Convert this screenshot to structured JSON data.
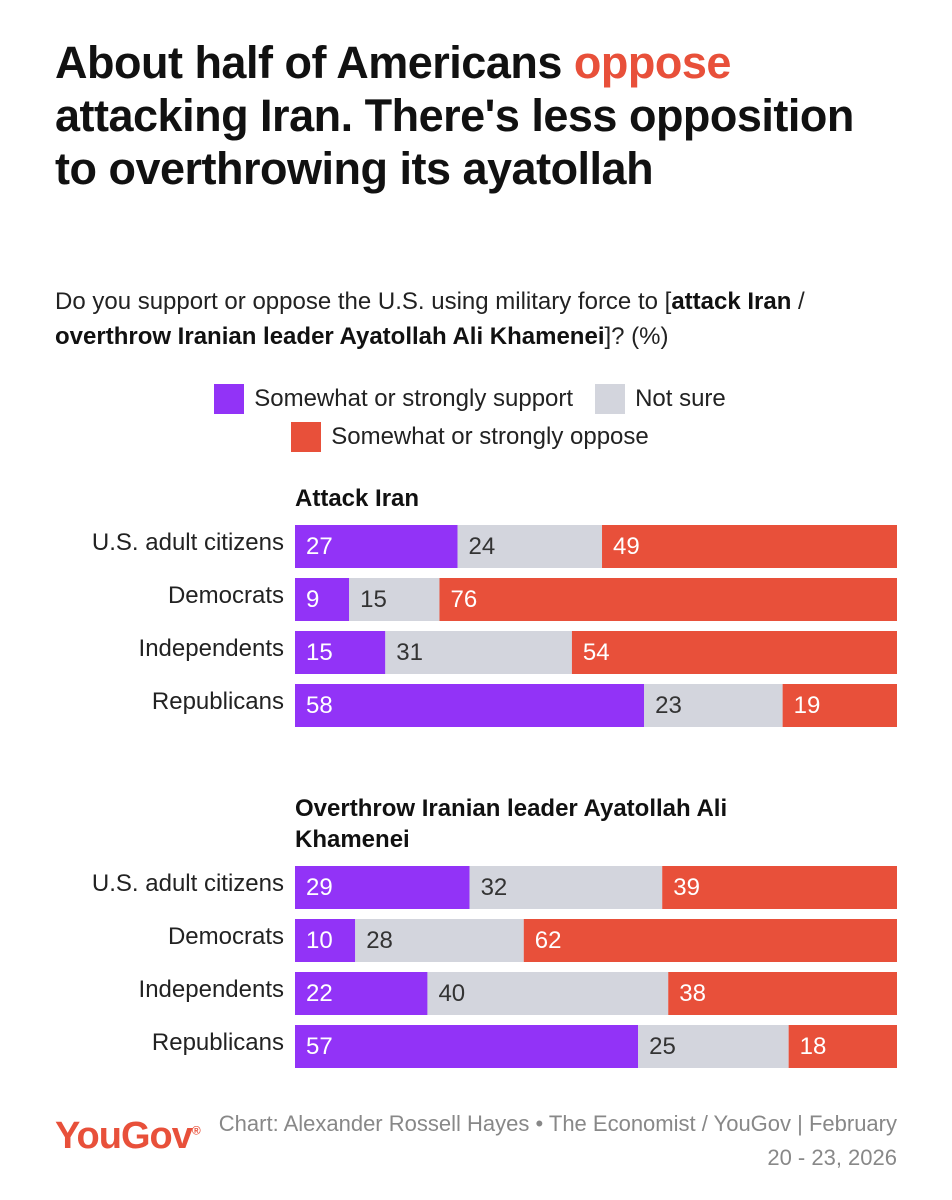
{
  "chart_data": {
    "type": "bar",
    "stacked": true,
    "orientation": "horizontal",
    "title": [
      {
        "text": "About half of Americans "
      },
      {
        "text": "oppose",
        "color": "#e8503a"
      },
      {
        "text": " attacking Iran. There's less opposition to overthrowing its ayatollah"
      }
    ],
    "subtitle": [
      {
        "text": "Do you support or oppose the U.S. using military force to ["
      },
      {
        "text": "attack Iran",
        "bold": true
      },
      {
        "text": " / "
      },
      {
        "text": "overthrow Iranian leader Ayatollah Ali Khamenei",
        "bold": true
      },
      {
        "text": "]? (%)"
      }
    ],
    "xlim": [
      0,
      100
    ],
    "panels": [
      {
        "title": "Attack Iran",
        "categories": [
          "U.S. adult citizens",
          "Democrats",
          "Independents",
          "Republicans"
        ]
      },
      {
        "title": "Overthrow Iranian leader Ayatollah Ali Khamenei",
        "categories": [
          "U.S. adult citizens",
          "Democrats",
          "Independents",
          "Republicans"
        ]
      }
    ],
    "series": [
      {
        "name": "Somewhat or strongly support",
        "color": "#9233f7",
        "label_color": "#ffffff",
        "values": [
          [
            27,
            9,
            15,
            58
          ],
          [
            29,
            10,
            22,
            57
          ]
        ]
      },
      {
        "name": "Not sure",
        "color": "#d3d5dd",
        "label_color": "#333333",
        "values": [
          [
            24,
            15,
            31,
            23
          ],
          [
            32,
            28,
            40,
            25
          ]
        ]
      },
      {
        "name": "Somewhat or strongly oppose",
        "color": "#e8503a",
        "label_color": "#ffffff",
        "values": [
          [
            49,
            76,
            54,
            19
          ],
          [
            39,
            62,
            38,
            18
          ]
        ]
      }
    ],
    "logo": "YouGov",
    "source": "Chart: Alexander Rossell Hayes • The Economist / YouGov | February 20 - 23, 2026"
  }
}
